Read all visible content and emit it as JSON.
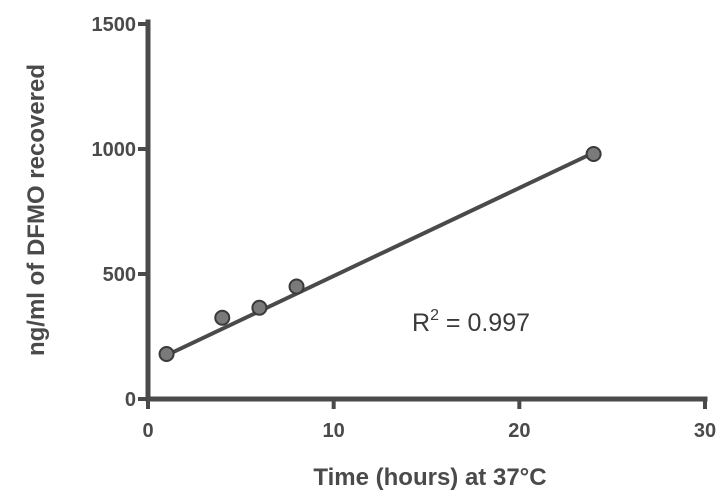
{
  "chart_data": {
    "type": "scatter",
    "xlabel": "Time (hours) at 37°C",
    "ylabel": "ng/ml of DFMO recovered",
    "xlim": [
      0,
      30
    ],
    "ylim": [
      0,
      1500
    ],
    "x_ticks": [
      "0",
      "10",
      "20",
      "30"
    ],
    "y_ticks": [
      "0",
      "500",
      "1000",
      "1500"
    ],
    "grid": false,
    "points": [
      {
        "x": 1,
        "y": 180
      },
      {
        "x": 4,
        "y": 325
      },
      {
        "x": 6,
        "y": 365
      },
      {
        "x": 8,
        "y": 450
      },
      {
        "x": 24,
        "y": 980
      }
    ],
    "fit_line": {
      "x_start": 1,
      "y_start": 175,
      "x_end": 24,
      "y_end": 985
    },
    "annotation": {
      "prefix": "R",
      "superscript": "2",
      "suffix": " = 0.997"
    }
  }
}
